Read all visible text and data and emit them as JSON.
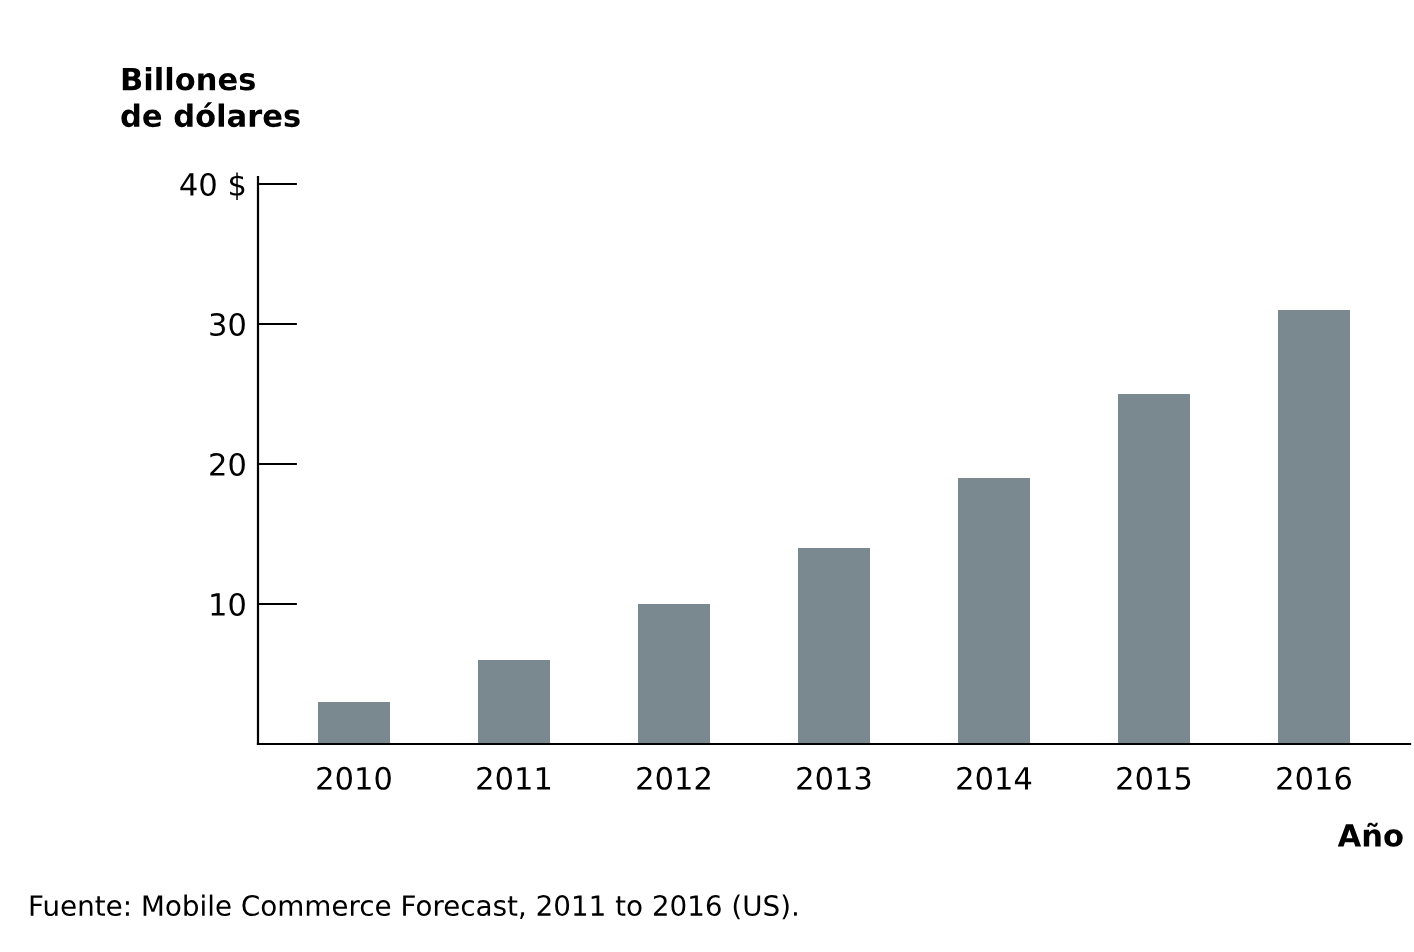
{
  "chart_data": {
    "type": "bar",
    "ylabel": "Billones\nde dólares",
    "xlabel": "Año",
    "categories": [
      "2010",
      "2011",
      "2012",
      "2013",
      "2014",
      "2015",
      "2016"
    ],
    "values": [
      3,
      6,
      10,
      14,
      19,
      25,
      31
    ],
    "color": "#7a8890",
    "ylim": [
      0,
      40.5
    ],
    "yticks": [
      10,
      20,
      30,
      {
        "value": 40,
        "label": "40 $"
      }
    ],
    "grid": false,
    "legend": false,
    "annotations": [
      "Fuente: Mobile Commerce Forecast, 2011 to 2016 (US)."
    ]
  }
}
